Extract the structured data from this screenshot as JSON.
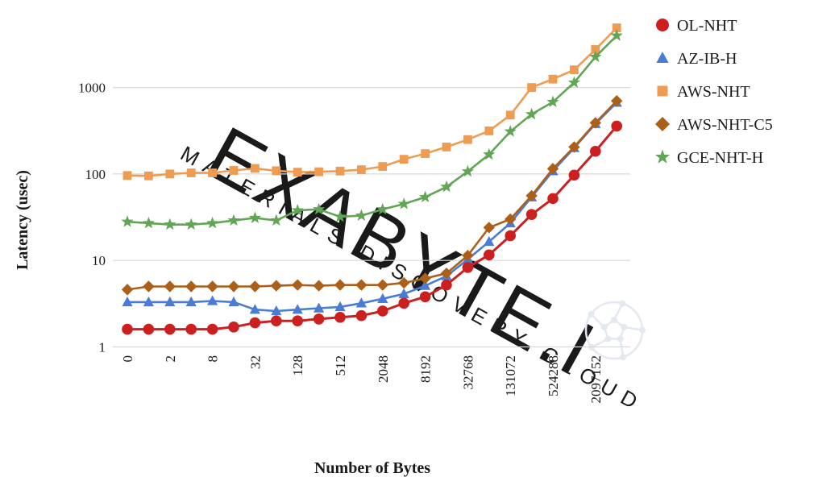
{
  "figure": {
    "background": "#FFFFFF"
  },
  "watermark": {
    "brand": "EXABYTE.I",
    "tagline": "MATERIALS DISCOVERY CLOUD",
    "color": "#E3E8F1"
  },
  "chart_data": {
    "type": "line",
    "title": "",
    "xlabel": "Number of Bytes",
    "ylabel": "Latency (usec)",
    "x_scale": "log2-categorical",
    "y_scale": "log10",
    "ylim": [
      1,
      10000
    ],
    "grid": "horizontal",
    "legend_position": "right",
    "y_ticks": [
      1,
      10,
      100,
      1000
    ],
    "y_tick_labels": [
      "1",
      "10",
      "100",
      "1000"
    ],
    "x_values": [
      0,
      1,
      2,
      4,
      8,
      16,
      32,
      64,
      128,
      256,
      512,
      1024,
      2048,
      4096,
      8192,
      16384,
      32768,
      65536,
      131072,
      262144,
      524288,
      1048576,
      2097152,
      4194304
    ],
    "x_ticks": [
      {
        "index": 0,
        "label": "0"
      },
      {
        "index": 2,
        "label": "2"
      },
      {
        "index": 4,
        "label": "8"
      },
      {
        "index": 6,
        "label": "32"
      },
      {
        "index": 8,
        "label": "128"
      },
      {
        "index": 10,
        "label": "512"
      },
      {
        "index": 12,
        "label": "2048"
      },
      {
        "index": 14,
        "label": "8192"
      },
      {
        "index": 16,
        "label": "32768"
      },
      {
        "index": 18,
        "label": "131072"
      },
      {
        "index": 20,
        "label": "524288"
      },
      {
        "index": 22,
        "label": "2097152"
      }
    ],
    "series": [
      {
        "name": "OL-NHT",
        "marker": "circle",
        "color": "#CC2020",
        "values": [
          1.6,
          1.6,
          1.6,
          1.6,
          1.6,
          1.7,
          1.9,
          2.0,
          2.0,
          2.1,
          2.2,
          2.3,
          2.6,
          3.2,
          3.8,
          5.2,
          8.3,
          11.6,
          19.3,
          34,
          52,
          97,
          183,
          358
        ]
      },
      {
        "name": "AZ-IB-H",
        "marker": "triangle",
        "color": "#4A7CD5",
        "values": [
          3.3,
          3.3,
          3.3,
          3.3,
          3.4,
          3.3,
          2.7,
          2.6,
          2.7,
          2.8,
          2.9,
          3.2,
          3.6,
          4.1,
          5.1,
          6.6,
          10.3,
          16.5,
          27,
          54,
          108,
          200,
          380,
          670
        ]
      },
      {
        "name": "AWS-NHT",
        "marker": "square",
        "color": "#ED9C52",
        "values": [
          96,
          95,
          100,
          103,
          103,
          110,
          116,
          109,
          105,
          106,
          108,
          112,
          122,
          148,
          172,
          205,
          250,
          315,
          480,
          1000,
          1250,
          1600,
          2750,
          4900
        ]
      },
      {
        "name": "AWS-NHT-C5",
        "marker": "diamond",
        "color": "#AC5F19",
        "values": [
          4.6,
          5.0,
          5.0,
          5.0,
          5.0,
          5.0,
          5.0,
          5.1,
          5.2,
          5.1,
          5.2,
          5.2,
          5.2,
          5.5,
          6.2,
          7.1,
          11.4,
          24,
          30,
          56,
          115,
          205,
          390,
          700
        ]
      },
      {
        "name": "GCE-NHT-H",
        "marker": "star",
        "color": "#61A654",
        "values": [
          28,
          27,
          26,
          26,
          27,
          29,
          31,
          29,
          38,
          39,
          32,
          33,
          39,
          45,
          54,
          71,
          107,
          168,
          310,
          490,
          680,
          1140,
          2260,
          3980
        ]
      }
    ]
  }
}
